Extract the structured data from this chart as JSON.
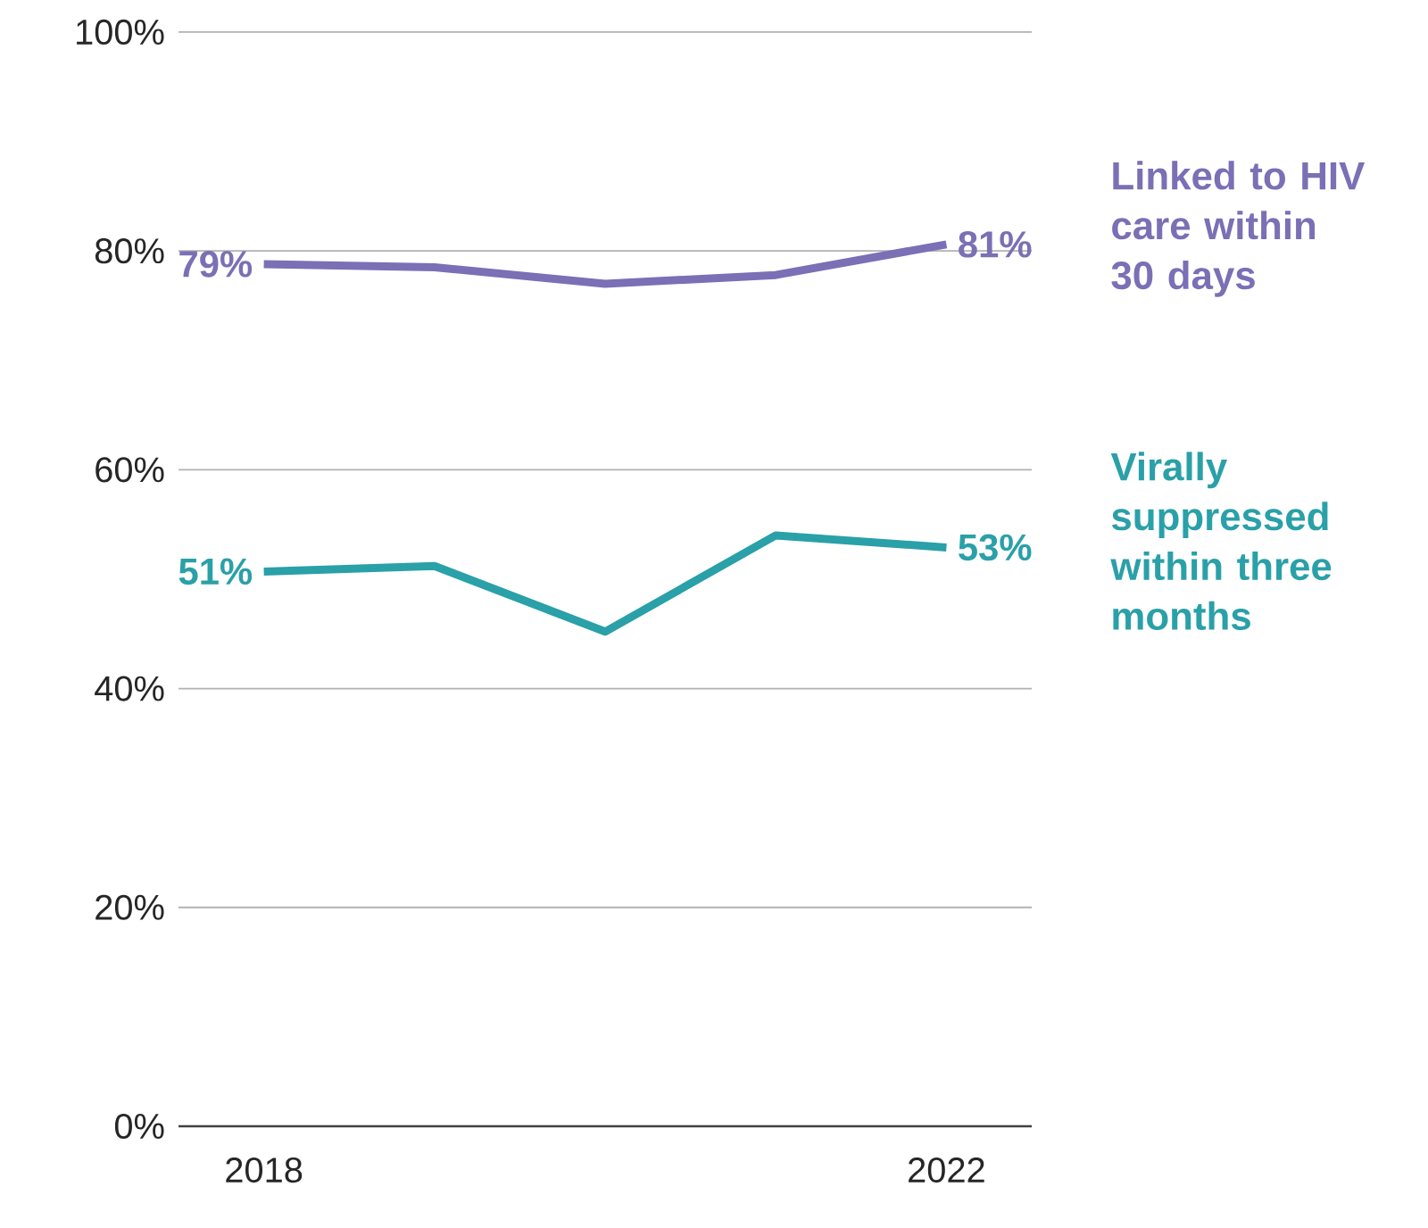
{
  "chart_data": {
    "type": "line",
    "x": [
      2018,
      2019,
      2020,
      2021,
      2022
    ],
    "xlim": [
      2017.5,
      2022.5
    ],
    "xticks": [
      2018,
      2022
    ],
    "ylim": [
      0,
      100
    ],
    "yticks": [
      {
        "value": 0,
        "label": "0%"
      },
      {
        "value": 20,
        "label": "20%"
      },
      {
        "value": 40,
        "label": "40%"
      },
      {
        "value": 60,
        "label": "60%"
      },
      {
        "value": 80,
        "label": "80%"
      },
      {
        "value": 100,
        "label": "100%"
      }
    ],
    "grid": "y",
    "line_style": "solid",
    "series": [
      {
        "name": "Linked to HIV care within 30 days",
        "color": "#7b6fb5",
        "values": [
          78.8,
          78.5,
          77.0,
          77.8,
          80.6
        ],
        "value_labels": [
          "79%",
          null,
          null,
          null,
          "81%"
        ]
      },
      {
        "name": "Virally suppressed within three months",
        "color": "#2aa0a8",
        "values": [
          50.7,
          51.2,
          45.2,
          54.0,
          52.9
        ],
        "value_labels": [
          "51%",
          null,
          null,
          null,
          "53%"
        ]
      }
    ]
  }
}
